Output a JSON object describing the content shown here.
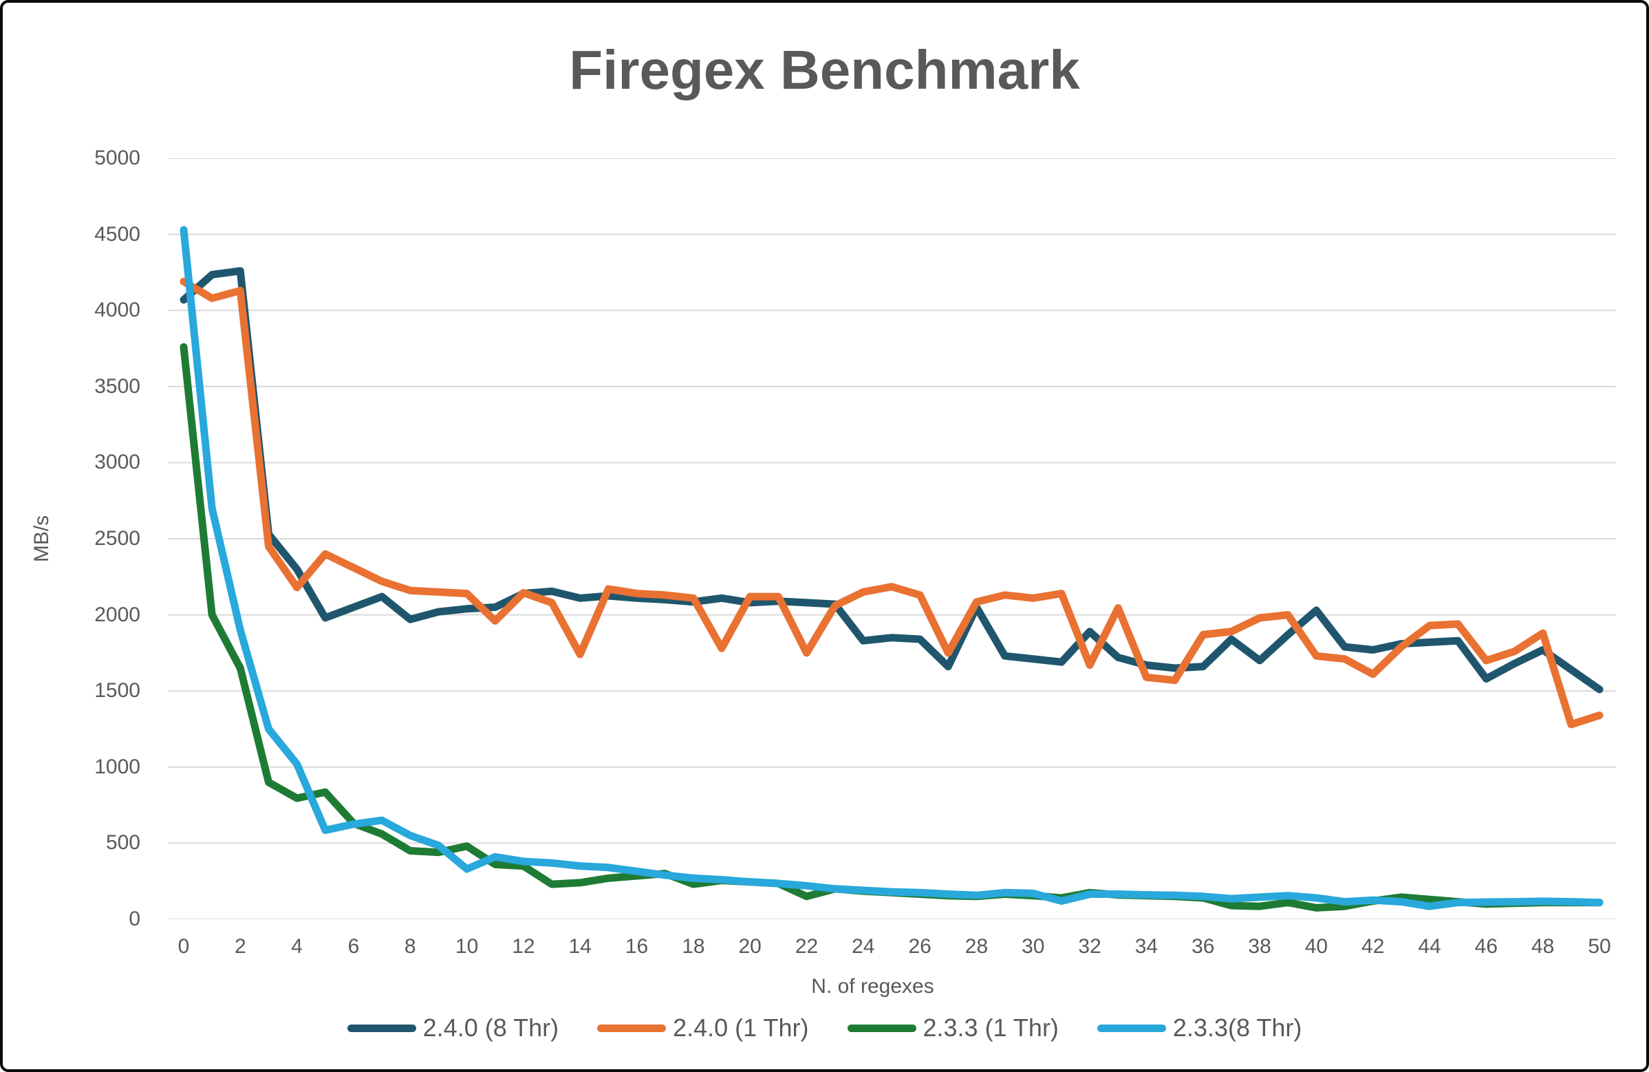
{
  "title": "Firegex Benchmark",
  "y_axis": {
    "label": "MB/s",
    "ticks": [
      0,
      500,
      1000,
      1500,
      2000,
      2500,
      3000,
      3500,
      4000,
      4500,
      5000
    ],
    "min": 0,
    "max": 5000
  },
  "x_axis": {
    "label": "N. of regexes",
    "ticks": [
      0,
      2,
      4,
      6,
      8,
      10,
      12,
      14,
      16,
      18,
      20,
      22,
      24,
      26,
      28,
      30,
      32,
      34,
      36,
      38,
      40,
      42,
      44,
      46,
      48,
      50
    ],
    "min": 0,
    "max": 50
  },
  "colors": {
    "text": "#595959",
    "gridline": "#D9D9D9",
    "frame_border": "#0a0a0a",
    "background": "#ffffff",
    "series_blue": "#1F566D",
    "series_orange": "#E97132",
    "series_green": "#1E7B34",
    "series_cyan": "#29A8DC"
  },
  "chart_data": {
    "type": "line",
    "title": "Firegex Benchmark",
    "xlabel": "N. of regexes",
    "ylabel": "MB/s",
    "ylim": [
      0,
      5000
    ],
    "xlim": [
      0,
      50
    ],
    "grid": true,
    "legend_position": "bottom",
    "x": [
      0,
      1,
      2,
      3,
      4,
      5,
      6,
      7,
      8,
      9,
      10,
      11,
      12,
      13,
      14,
      15,
      16,
      17,
      18,
      19,
      20,
      21,
      22,
      23,
      24,
      25,
      26,
      27,
      28,
      29,
      30,
      31,
      32,
      33,
      34,
      35,
      36,
      37,
      38,
      39,
      40,
      41,
      42,
      43,
      44,
      45,
      46,
      47,
      48,
      49,
      50
    ],
    "series": [
      {
        "name": "2.4.0 (8 Thr)",
        "color": "#1F566D",
        "values": [
          4070,
          4235,
          4260,
          2530,
          2300,
          1980,
          2050,
          2120,
          1970,
          2020,
          2040,
          2050,
          2140,
          2155,
          2110,
          2125,
          2110,
          2100,
          2085,
          2110,
          2080,
          2090,
          2080,
          2070,
          1830,
          1850,
          1840,
          1660,
          2050,
          1730,
          1710,
          1690,
          1890,
          1720,
          1670,
          1650,
          1660,
          1840,
          1700,
          1870,
          2030,
          1790,
          1770,
          1810,
          1820,
          1830,
          1580,
          1680,
          1770,
          1640,
          1510
        ]
      },
      {
        "name": "2.4.0 (1 Thr)",
        "color": "#E97132",
        "values": [
          4190,
          4080,
          4130,
          2450,
          2180,
          2400,
          2310,
          2220,
          2160,
          2150,
          2140,
          1960,
          2145,
          2080,
          1740,
          2170,
          2140,
          2130,
          2110,
          1780,
          2120,
          2120,
          1750,
          2060,
          2150,
          2185,
          2130,
          1750,
          2085,
          2130,
          2110,
          2140,
          1670,
          2045,
          1590,
          1570,
          1870,
          1890,
          1980,
          2000,
          1730,
          1710,
          1610,
          1790,
          1930,
          1940,
          1700,
          1760,
          1880,
          1280,
          1340
        ]
      },
      {
        "name": "2.3.3 (1 Thr)",
        "color": "#1E7B34",
        "values": [
          3760,
          2000,
          1650,
          900,
          795,
          835,
          630,
          560,
          450,
          440,
          480,
          360,
          350,
          230,
          240,
          270,
          285,
          300,
          230,
          255,
          245,
          235,
          150,
          200,
          185,
          175,
          165,
          155,
          150,
          165,
          155,
          140,
          175,
          160,
          155,
          150,
          140,
          90,
          85,
          110,
          75,
          85,
          120,
          145,
          130,
          115,
          100,
          105,
          110,
          110,
          110
        ]
      },
      {
        "name": "2.3.3(8 Thr)",
        "color": "#29A8DC",
        "values": [
          4530,
          2700,
          1900,
          1250,
          1020,
          585,
          625,
          650,
          550,
          485,
          330,
          410,
          380,
          370,
          350,
          340,
          315,
          290,
          270,
          260,
          245,
          235,
          220,
          200,
          190,
          180,
          175,
          165,
          157,
          175,
          170,
          120,
          165,
          165,
          160,
          157,
          150,
          135,
          145,
          155,
          140,
          115,
          125,
          115,
          85,
          110,
          113,
          115,
          118,
          115,
          110
        ]
      }
    ]
  }
}
